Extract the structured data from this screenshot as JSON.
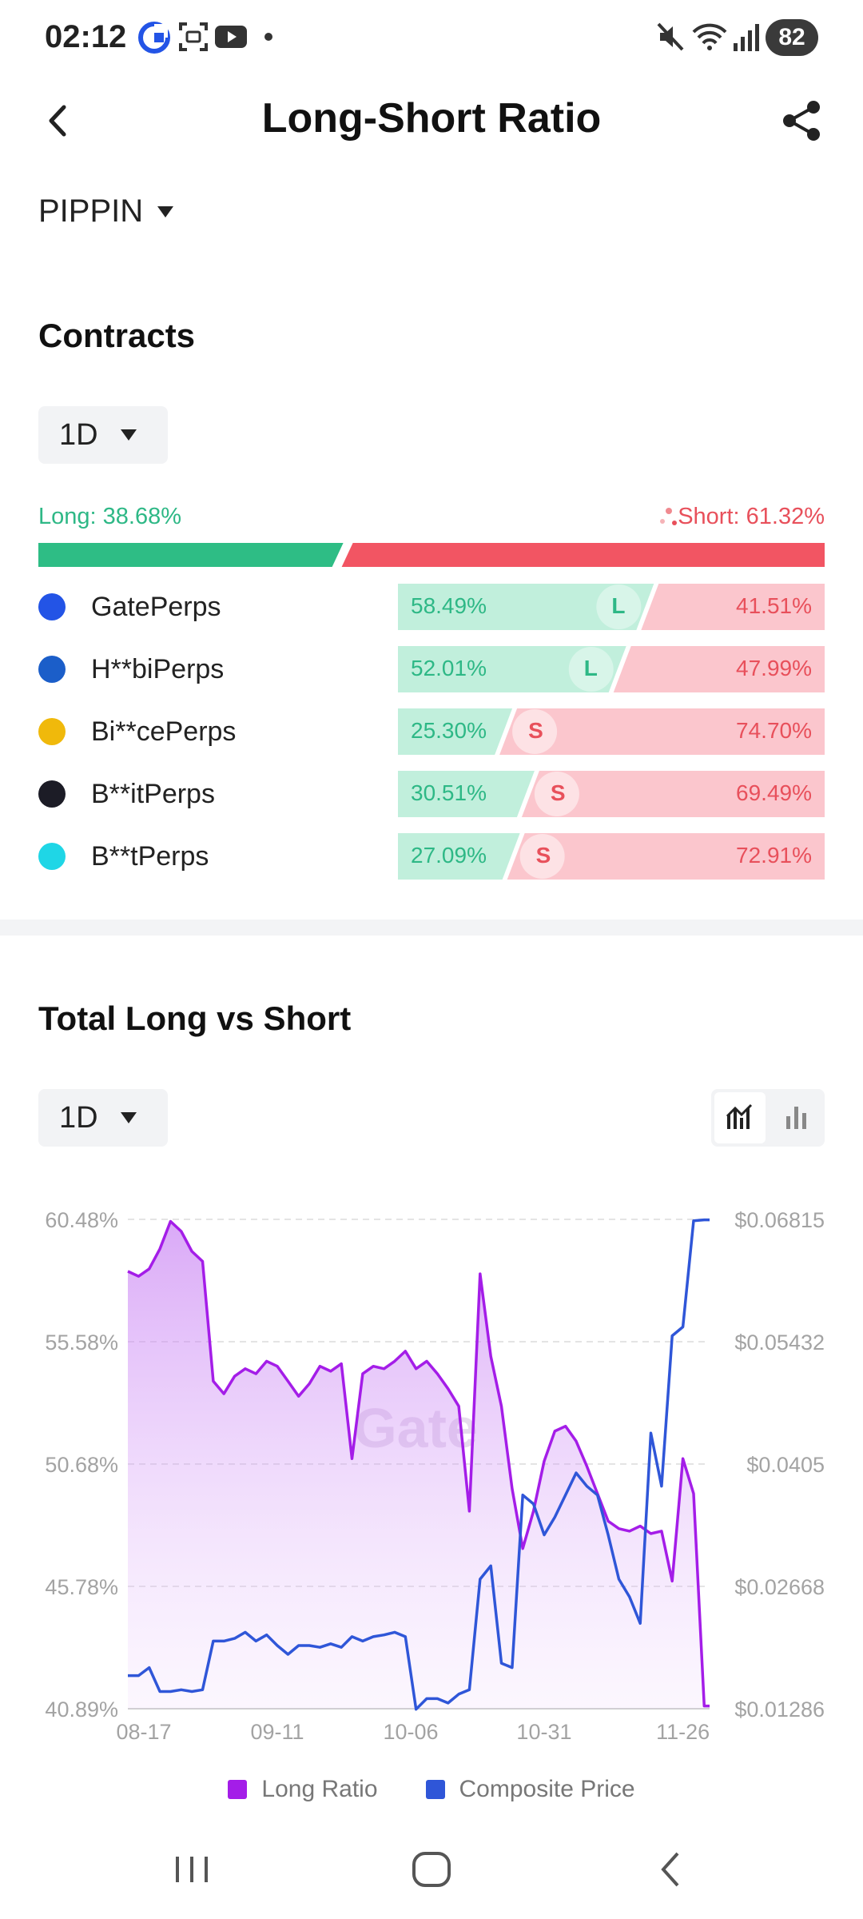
{
  "status_bar": {
    "time": "02:12",
    "battery": "82"
  },
  "header": {
    "title": "Long-Short Ratio"
  },
  "symbol": {
    "label": "PIPPIN"
  },
  "contracts": {
    "title": "Contracts",
    "interval": "1D",
    "long_label": "Long: 38.68%",
    "short_label": "Short: 61.32%",
    "long_fraction": 0.3868,
    "exchanges": [
      {
        "name": "GatePerps",
        "long": "58.49%",
        "short": "41.51%",
        "long_fraction": 0.5849,
        "tag": "L",
        "logo": "gate-logo-icon",
        "color": "#2354e6"
      },
      {
        "name": "H**biPerps",
        "long": "52.01%",
        "short": "47.99%",
        "long_fraction": 0.5201,
        "tag": "L",
        "logo": "huobi-logo-icon",
        "color": "#1b5ec9"
      },
      {
        "name": "Bi**cePerps",
        "long": "25.30%",
        "short": "74.70%",
        "long_fraction": 0.253,
        "tag": "S",
        "logo": "binance-logo-icon",
        "color": "#f0b90b"
      },
      {
        "name": "B**itPerps",
        "long": "30.51%",
        "short": "69.49%",
        "long_fraction": 0.3051,
        "tag": "S",
        "logo": "bybit-logo-icon",
        "color": "#1c1c26"
      },
      {
        "name": "B**tPerps",
        "long": "27.09%",
        "short": "72.91%",
        "long_fraction": 0.2709,
        "tag": "S",
        "logo": "bitget-logo-icon",
        "color": "#1fd6e6"
      }
    ]
  },
  "total": {
    "title": "Total Long vs Short",
    "interval": "1D"
  },
  "chart_data": {
    "type": "line",
    "title": "",
    "x_ticks": [
      "08-17",
      "09-11",
      "10-06",
      "10-31",
      "11-26"
    ],
    "y_left_ticks": [
      "60.48%",
      "55.58%",
      "50.68%",
      "45.78%",
      "40.89%"
    ],
    "y_right_ticks": [
      "$0.06815",
      "$0.05432",
      "$0.0405",
      "$0.02668",
      "$0.01286"
    ],
    "ylim_left": [
      40.89,
      60.48
    ],
    "ylim_right": [
      0.01286,
      0.06815
    ],
    "x_start": "2024-08-14",
    "x_end": "2024-12-01",
    "grid": true,
    "watermark": "Gate",
    "legend_position": "bottom",
    "series": [
      {
        "name": "Long Ratio",
        "axis": "left",
        "color": "#a41de8",
        "fill": true,
        "x": [
          "08-14",
          "08-16",
          "08-18",
          "08-20",
          "08-22",
          "08-24",
          "08-26",
          "08-28",
          "08-30",
          "09-01",
          "09-03",
          "09-05",
          "09-07",
          "09-09",
          "09-11",
          "09-13",
          "09-15",
          "09-17",
          "09-19",
          "09-21",
          "09-23",
          "09-25",
          "09-27",
          "09-29",
          "10-01",
          "10-03",
          "10-05",
          "10-07",
          "10-09",
          "10-11",
          "10-13",
          "10-15",
          "10-17",
          "10-19",
          "10-21",
          "10-23",
          "10-25",
          "10-27",
          "10-29",
          "10-31",
          "11-02",
          "11-04",
          "11-06",
          "11-08",
          "11-10",
          "11-12",
          "11-14",
          "11-16",
          "11-18",
          "11-20",
          "11-22",
          "11-24",
          "11-26",
          "11-28",
          "11-30",
          "12-01"
        ],
        "values": [
          58.4,
          58.2,
          58.5,
          59.3,
          60.4,
          60.0,
          59.2,
          58.8,
          54.0,
          53.5,
          54.2,
          54.5,
          54.3,
          54.8,
          54.6,
          54.0,
          53.4,
          53.9,
          54.6,
          54.4,
          54.7,
          50.9,
          54.3,
          54.6,
          54.5,
          54.8,
          55.2,
          54.5,
          54.8,
          54.3,
          53.7,
          53.0,
          48.8,
          58.3,
          55.0,
          53.0,
          49.7,
          47.3,
          48.8,
          50.8,
          52.0,
          52.2,
          51.6,
          50.6,
          49.5,
          48.4,
          48.1,
          48.0,
          48.2,
          47.9,
          48.0,
          46.0,
          50.9,
          49.5,
          41.0,
          41.0
        ]
      },
      {
        "name": "Composite Price",
        "axis": "right",
        "color": "#2f56d8",
        "fill": false,
        "x": [
          "08-14",
          "08-16",
          "08-18",
          "08-20",
          "08-22",
          "08-24",
          "08-26",
          "08-28",
          "08-30",
          "09-01",
          "09-03",
          "09-05",
          "09-07",
          "09-09",
          "09-11",
          "09-13",
          "09-15",
          "09-17",
          "09-19",
          "09-21",
          "09-23",
          "09-25",
          "09-27",
          "09-29",
          "10-01",
          "10-03",
          "10-05",
          "10-07",
          "10-09",
          "10-11",
          "10-13",
          "10-15",
          "10-17",
          "10-19",
          "10-21",
          "10-23",
          "10-25",
          "10-27",
          "10-29",
          "10-31",
          "11-02",
          "11-04",
          "11-06",
          "11-08",
          "11-10",
          "11-12",
          "11-14",
          "11-16",
          "11-18",
          "11-20",
          "11-22",
          "11-24",
          "11-26",
          "11-28",
          "11-30",
          "12-01"
        ],
        "values": [
          0.0166,
          0.0166,
          0.0175,
          0.0148,
          0.0148,
          0.015,
          0.0148,
          0.015,
          0.0205,
          0.0205,
          0.0208,
          0.0215,
          0.0205,
          0.0212,
          0.02,
          0.019,
          0.02,
          0.02,
          0.0198,
          0.0202,
          0.0198,
          0.021,
          0.0205,
          0.021,
          0.0212,
          0.0215,
          0.021,
          0.0128,
          0.014,
          0.014,
          0.0135,
          0.0145,
          0.015,
          0.0275,
          0.029,
          0.018,
          0.0175,
          0.037,
          0.036,
          0.0325,
          0.0345,
          0.037,
          0.0395,
          0.038,
          0.037,
          0.0325,
          0.0275,
          0.0255,
          0.0225,
          0.044,
          0.038,
          0.055,
          0.056,
          0.068,
          0.0681,
          0.0681
        ]
      }
    ]
  },
  "navbar": {
    "recent": "recent-apps-icon",
    "home": "home-icon",
    "back": "back-icon"
  }
}
